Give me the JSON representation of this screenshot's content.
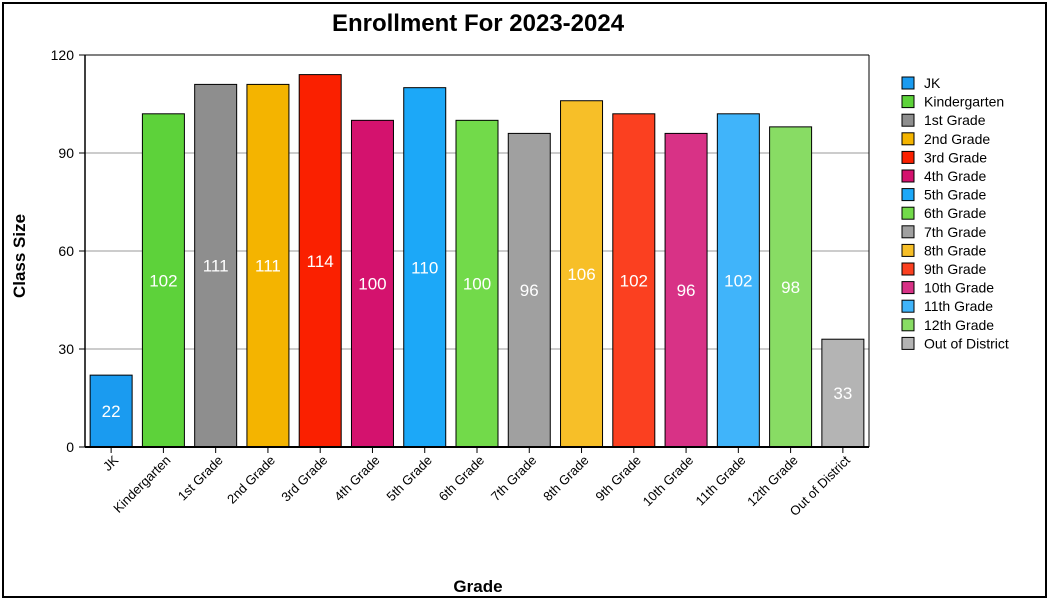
{
  "chart_data": {
    "type": "bar",
    "title": "Enrollment For 2023-2024",
    "xlabel": "Grade",
    "ylabel": "Class Size",
    "ylim": [
      0,
      120
    ],
    "yticks": [
      0,
      30,
      60,
      90,
      120
    ],
    "grid": true,
    "legend_position": "right",
    "categories": [
      "JK",
      "Kindergarten",
      "1st Grade",
      "2nd Grade",
      "3rd Grade",
      "4th Grade",
      "5th Grade",
      "6th Grade",
      "7th Grade",
      "8th Grade",
      "9th Grade",
      "10th Grade",
      "11th Grade",
      "12th Grade",
      "Out of District"
    ],
    "values": [
      22,
      102,
      111,
      111,
      114,
      100,
      110,
      100,
      96,
      106,
      102,
      96,
      102,
      98,
      33
    ],
    "colors": [
      "#1a9bf0",
      "#5dd23a",
      "#8e8e8e",
      "#f4b400",
      "#fa2000",
      "#d4126e",
      "#1ca8f8",
      "#72da4a",
      "#a0a0a0",
      "#f7bf28",
      "#fb4020",
      "#d83286",
      "#40b4fa",
      "#88dc64",
      "#b4b4b4"
    ]
  }
}
